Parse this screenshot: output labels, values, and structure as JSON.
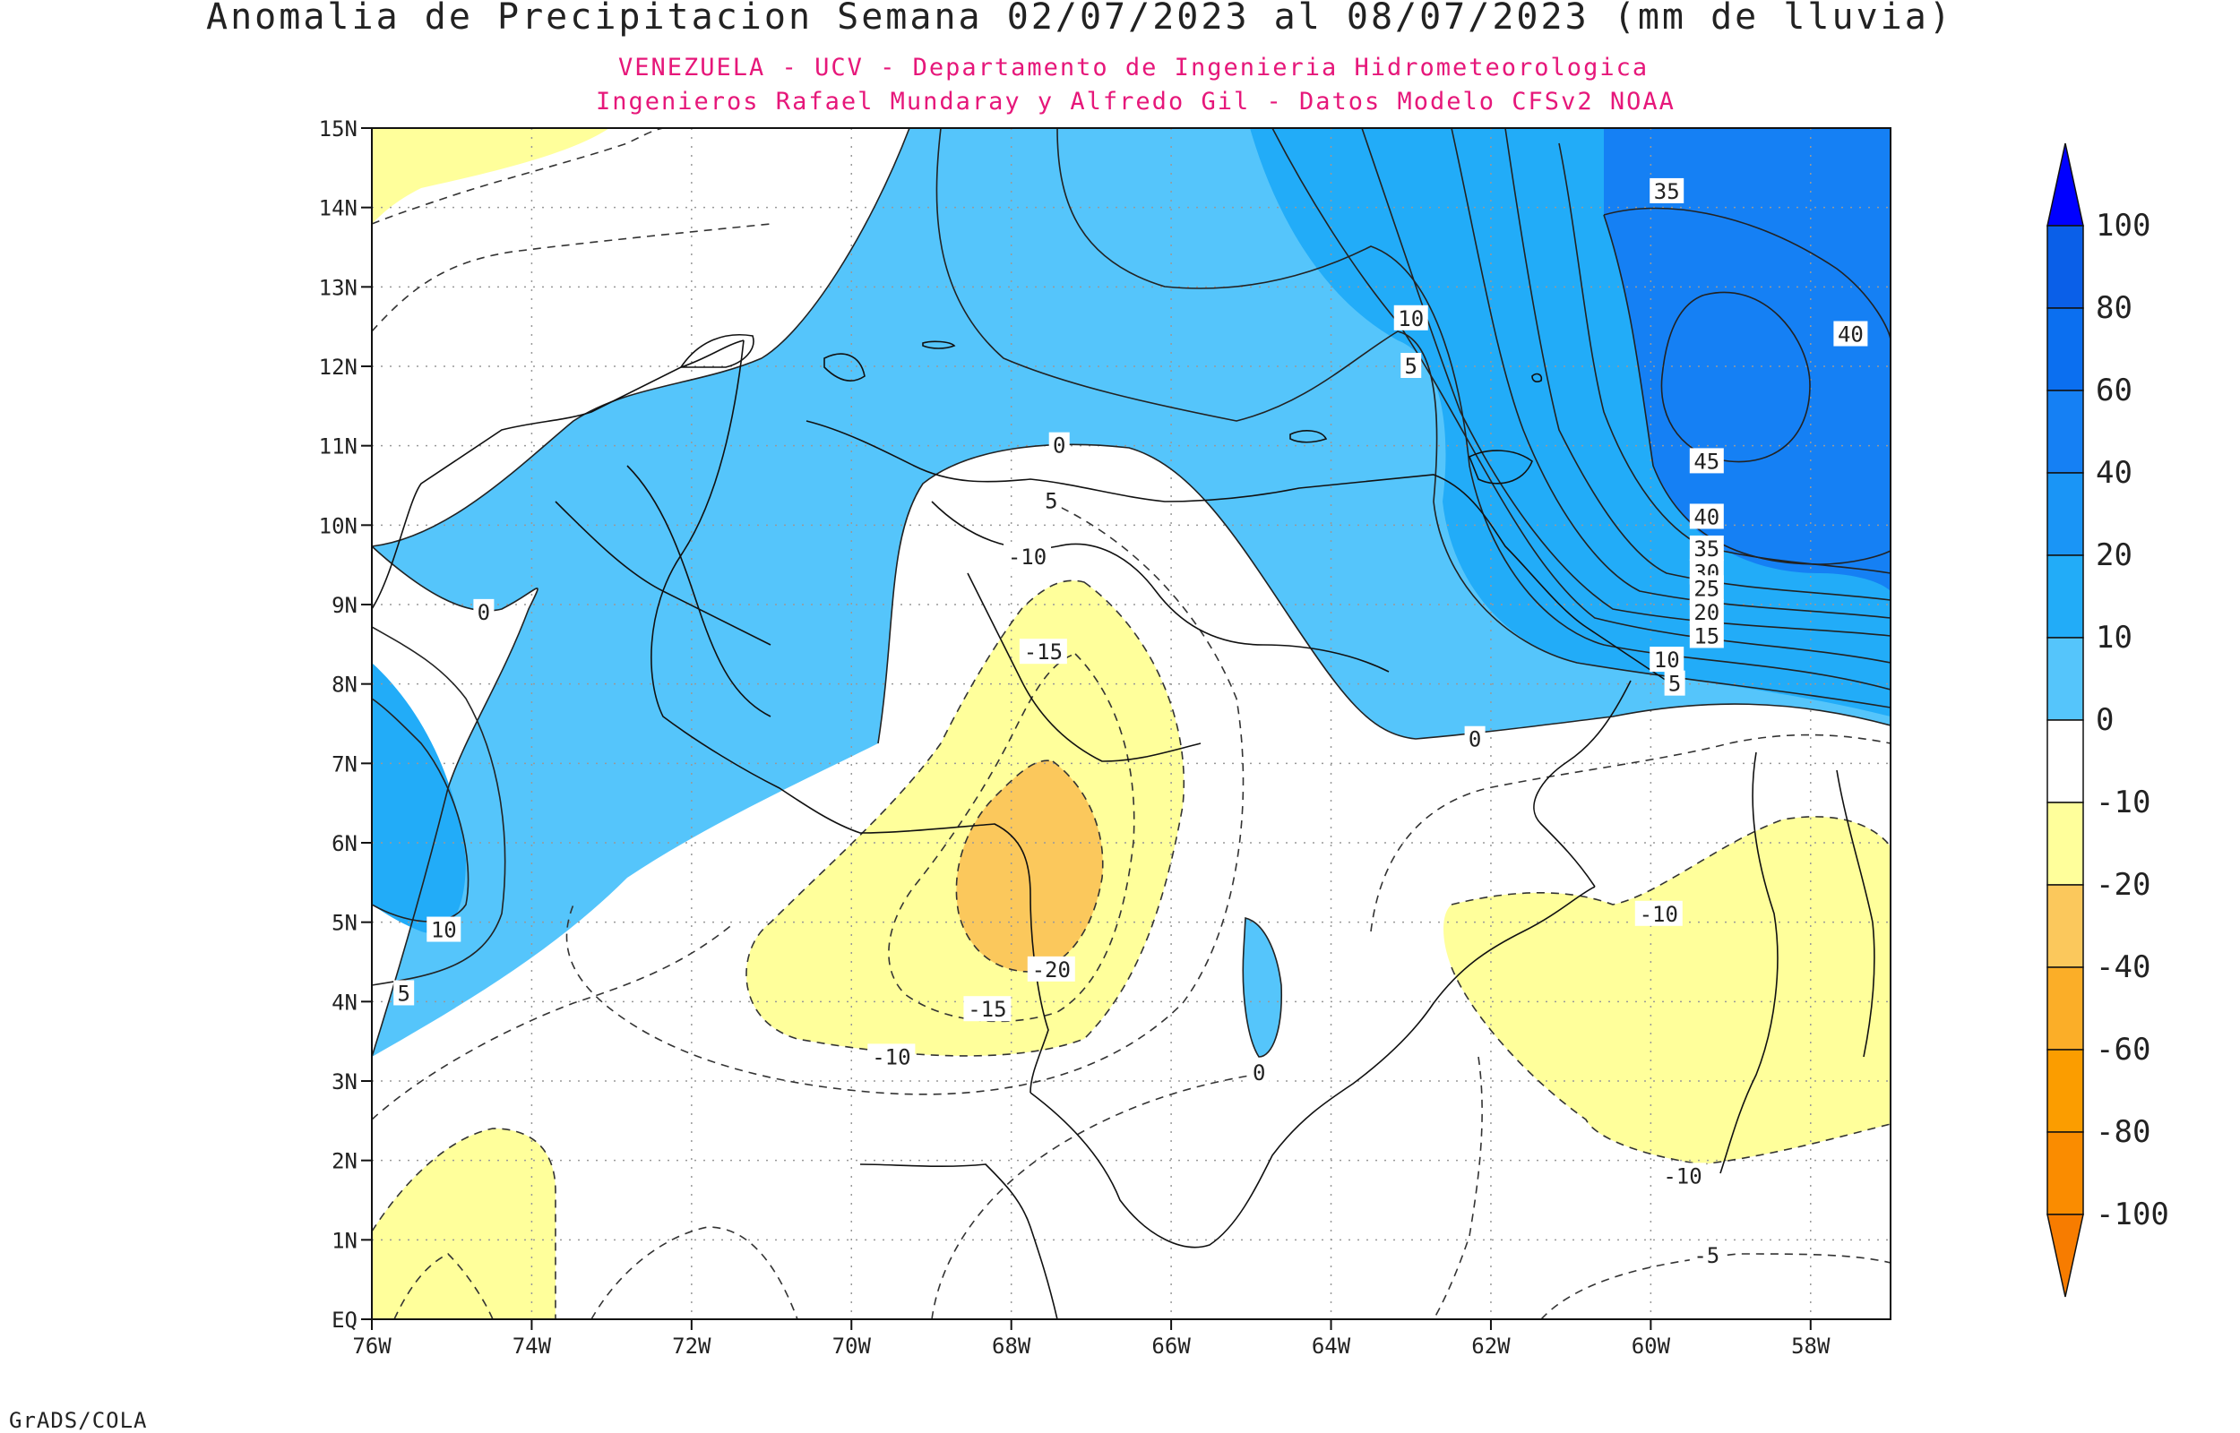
{
  "map": {
    "title": "Anomalia de Precipitacion Semana 02/07/2023 al 08/07/2023 (mm de lluvia)",
    "subtitle_1": "VENEZUELA - UCV - Departamento de Ingenieria Hidrometeorologica",
    "subtitle_2": "Ingenieros Rafael Mundaray y Alfredo Gil - Datos Modelo CFSv2 NOAA",
    "credit": "GrADS/COLA",
    "region": "Venezuela",
    "lon_range": [
      -76,
      -57
    ],
    "lat_range": [
      0,
      15
    ],
    "lon_ticks": [
      "76W",
      "74W",
      "72W",
      "70W",
      "68W",
      "66W",
      "64W",
      "62W",
      "60W",
      "58W"
    ],
    "lat_ticks": [
      "EQ",
      "1N",
      "2N",
      "3N",
      "4N",
      "5N",
      "6N",
      "7N",
      "8N",
      "9N",
      "10N",
      "11N",
      "12N",
      "13N",
      "14N",
      "15N"
    ],
    "contour_labels": [
      {
        "text": "35",
        "lon": -59.8,
        "lat": 14.2
      },
      {
        "text": "10",
        "lon": -63.0,
        "lat": 12.6
      },
      {
        "text": "5",
        "lon": -63.0,
        "lat": 12.0
      },
      {
        "text": "40",
        "lon": -57.5,
        "lat": 12.4
      },
      {
        "text": "45",
        "lon": -59.3,
        "lat": 10.8
      },
      {
        "text": "40",
        "lon": -59.3,
        "lat": 10.1
      },
      {
        "text": "35",
        "lon": -59.3,
        "lat": 9.7
      },
      {
        "text": "30",
        "lon": -59.3,
        "lat": 9.4
      },
      {
        "text": "25",
        "lon": -59.3,
        "lat": 9.2
      },
      {
        "text": "20",
        "lon": -59.3,
        "lat": 8.9
      },
      {
        "text": "15",
        "lon": -59.3,
        "lat": 8.6
      },
      {
        "text": "10",
        "lon": -59.8,
        "lat": 8.3
      },
      {
        "text": "5",
        "lon": -59.7,
        "lat": 8.0
      },
      {
        "text": "0",
        "lon": -62.2,
        "lat": 7.3
      },
      {
        "text": "0",
        "lon": -67.4,
        "lat": 11.0
      },
      {
        "text": "5",
        "lon": -67.5,
        "lat": 10.3
      },
      {
        "text": "-10",
        "lon": -67.8,
        "lat": 9.6
      },
      {
        "text": "-15",
        "lon": -67.6,
        "lat": 8.4
      },
      {
        "text": "-20",
        "lon": -67.5,
        "lat": 4.4
      },
      {
        "text": "-15",
        "lon": -68.3,
        "lat": 3.9
      },
      {
        "text": "-10",
        "lon": -69.5,
        "lat": 3.3
      },
      {
        "text": "0",
        "lon": -74.6,
        "lat": 8.9
      },
      {
        "text": "10",
        "lon": -75.1,
        "lat": 4.9
      },
      {
        "text": "5",
        "lon": -75.6,
        "lat": 4.1
      },
      {
        "text": "0",
        "lon": -64.9,
        "lat": 3.1
      },
      {
        "text": "-10",
        "lon": -59.9,
        "lat": 5.1
      },
      {
        "text": "-10",
        "lon": -59.6,
        "lat": 1.8
      },
      {
        "text": "-5",
        "lon": -59.3,
        "lat": 0.8
      }
    ]
  },
  "legend": {
    "labels": [
      "100",
      "80",
      "60",
      "40",
      "20",
      "10",
      "0",
      "-10",
      "-20",
      "-40",
      "-60",
      "-80",
      "-100"
    ],
    "colors": [
      "#0000ff",
      "#0a5fe8",
      "#0b6ff0",
      "#1580f4",
      "#1a95f6",
      "#22acf8",
      "#55c5fb",
      "#ffffff",
      "#ffff9b",
      "#fbc85c",
      "#fbae28",
      "#fb9d00",
      "#fa8c00",
      "#f77c00"
    ]
  },
  "shading": {
    "positive_light": "#55c5fb",
    "positive_mid": "#22acf8",
    "positive_dark": "#1580f4",
    "negative_light": "#ffff9b",
    "negative_mid": "#fbc85c"
  }
}
